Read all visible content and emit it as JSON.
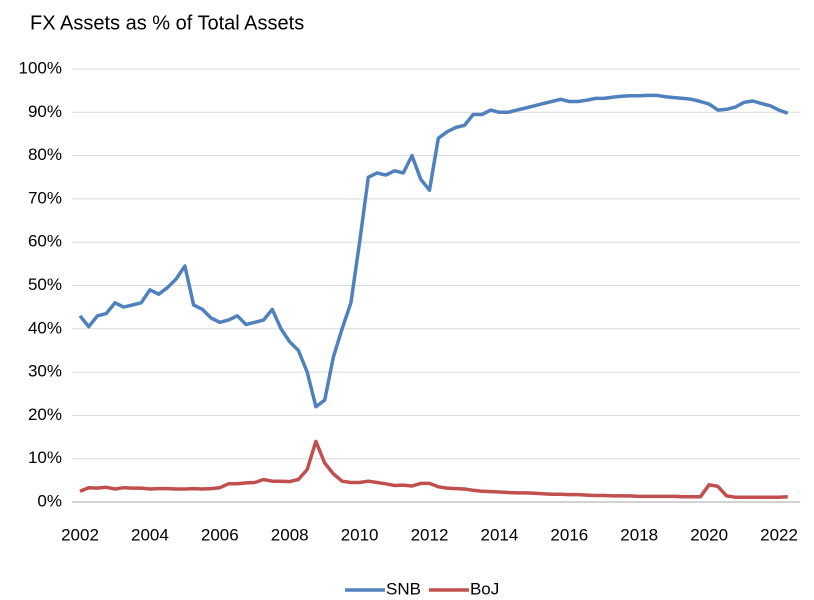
{
  "chart_data": {
    "type": "line",
    "title": "FX Assets as % of Total Assets",
    "x": [
      2002,
      2002.25,
      2002.5,
      2002.75,
      2003,
      2003.25,
      2003.5,
      2003.75,
      2004,
      2004.25,
      2004.5,
      2004.75,
      2005,
      2005.25,
      2005.5,
      2005.75,
      2006,
      2006.25,
      2006.5,
      2006.75,
      2007,
      2007.25,
      2007.5,
      2007.75,
      2008,
      2008.25,
      2008.5,
      2008.75,
      2009,
      2009.25,
      2009.5,
      2009.75,
      2010,
      2010.25,
      2010.5,
      2010.75,
      2011,
      2011.25,
      2011.5,
      2011.75,
      2012,
      2012.25,
      2012.5,
      2012.75,
      2013,
      2013.25,
      2013.5,
      2013.75,
      2014,
      2014.25,
      2014.5,
      2014.75,
      2015,
      2015.25,
      2015.5,
      2015.75,
      2016,
      2016.25,
      2016.5,
      2016.75,
      2017,
      2017.25,
      2017.5,
      2017.75,
      2018,
      2018.25,
      2018.5,
      2018.75,
      2019,
      2019.25,
      2019.5,
      2019.75,
      2020,
      2020.25,
      2020.5,
      2020.75,
      2021,
      2021.25,
      2021.5,
      2021.75,
      2022,
      2022.25
    ],
    "series": [
      {
        "name": "SNB",
        "color": "#4f81bd",
        "values": [
          43,
          40.5,
          43,
          43.5,
          46,
          45,
          45.5,
          46,
          49,
          48,
          49.5,
          51.5,
          54.5,
          45.5,
          44.5,
          42.5,
          41.5,
          42,
          43,
          41,
          41.5,
          42,
          44.5,
          40,
          37,
          35,
          30,
          22,
          23.5,
          33.5,
          40,
          46,
          60,
          75,
          76,
          75.5,
          76.5,
          76,
          80,
          74.5,
          72,
          84,
          85.5,
          86.5,
          87,
          89.5,
          89.5,
          90.5,
          90,
          90,
          90.5,
          91,
          91.5,
          92,
          92.5,
          93,
          92.5,
          92.5,
          92.8,
          93.2,
          93.2,
          93.5,
          93.7,
          93.8,
          93.8,
          93.9,
          93.9,
          93.6,
          93.4,
          93.2,
          93,
          92.5,
          91.9,
          90.5,
          90.7,
          91.2,
          92.3,
          92.6,
          92,
          91.5,
          90.5,
          89.8
        ]
      },
      {
        "name": "BoJ",
        "color": "#c0504d",
        "values": [
          2.5,
          3.3,
          3.2,
          3.4,
          3,
          3.3,
          3.2,
          3.2,
          3,
          3.1,
          3.1,
          3,
          3,
          3.1,
          3,
          3.1,
          3.3,
          4.2,
          4.2,
          4.4,
          4.5,
          5.2,
          4.8,
          4.8,
          4.7,
          5.2,
          7.5,
          14,
          9,
          6.5,
          4.8,
          4.5,
          4.5,
          4.8,
          4.5,
          4.2,
          3.8,
          3.9,
          3.7,
          4.3,
          4.3,
          3.5,
          3.2,
          3.1,
          3,
          2.7,
          2.5,
          2.4,
          2.3,
          2.2,
          2.1,
          2.1,
          2,
          1.9,
          1.8,
          1.8,
          1.7,
          1.7,
          1.6,
          1.5,
          1.5,
          1.4,
          1.4,
          1.4,
          1.3,
          1.3,
          1.3,
          1.3,
          1.3,
          1.2,
          1.2,
          1.2,
          4,
          3.6,
          1.4,
          1.1,
          1.1,
          1.1,
          1.1,
          1.1,
          1.1,
          1.2
        ]
      }
    ],
    "xlim": [
      2002,
      2022.6
    ],
    "xticks": [
      2002,
      2004,
      2006,
      2008,
      2010,
      2012,
      2014,
      2016,
      2018,
      2020,
      2022
    ],
    "ylim": [
      0,
      100
    ],
    "yticks": [
      {
        "value": 0,
        "label": "0%"
      },
      {
        "value": 10,
        "label": "10%"
      },
      {
        "value": 20,
        "label": "20%"
      },
      {
        "value": 30,
        "label": "30%"
      },
      {
        "value": 40,
        "label": "40%"
      },
      {
        "value": 50,
        "label": "50%"
      },
      {
        "value": 60,
        "label": "60%"
      },
      {
        "value": 70,
        "label": "70%"
      },
      {
        "value": 80,
        "label": "80%"
      },
      {
        "value": 90,
        "label": "90%"
      },
      {
        "value": 100,
        "label": "100%"
      }
    ],
    "grid": true,
    "legend": "bottom"
  }
}
